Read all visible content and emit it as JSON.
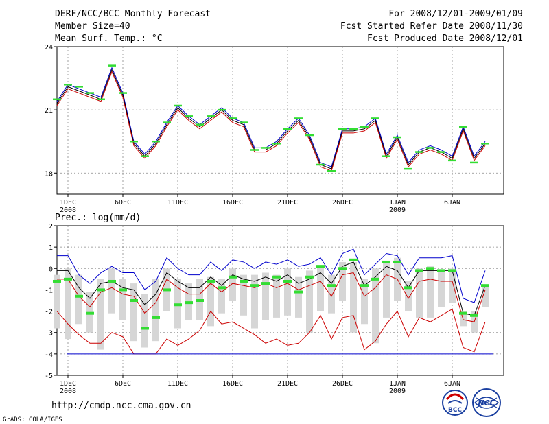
{
  "header": {
    "title": "DERF/NCC/BCC Monthly Forecast",
    "member_size": "Member Size=40",
    "variable": "Mean Surf. Temp.: °C",
    "forecast_period": "For 2008/12/01-2009/01/09",
    "fcst_started": "Fcst Started Refer Date 2008/11/30",
    "fcst_produced": "Fcst Produced Date 2008/12/01"
  },
  "footer": {
    "url": "http://cmdp.ncc.cma.gov.cn",
    "grads": "GrADS: COLA/IGES",
    "logo_bcc": "BCC",
    "logo_ncc": "NCC"
  },
  "colors": {
    "ensemble_mean": "#000000",
    "upper": "#0000cc",
    "lower": "#cc0000",
    "marker": "#33dd33",
    "box": "#d6d6d6",
    "grid": "#888888"
  },
  "chart_data": [
    {
      "type": "line",
      "title": "Mean Surf. Temp.: °C",
      "x_tick_labels": [
        "1DEC",
        "6DEC",
        "11DEC",
        "16DEC",
        "21DEC",
        "26DEC",
        "1JAN",
        "6JAN"
      ],
      "x_year_labels": [
        {
          "at": "1DEC",
          "label": "2008"
        },
        {
          "at": "1JAN",
          "label": "2009"
        }
      ],
      "ylim": [
        17,
        24
      ],
      "yticks": [
        18,
        21,
        24
      ],
      "grid": true,
      "days": 40,
      "series": [
        {
          "name": "upper",
          "values": [
            21.4,
            22.2,
            22.0,
            21.8,
            21.6,
            23.0,
            21.8,
            19.5,
            18.9,
            19.5,
            20.4,
            21.2,
            20.7,
            20.3,
            20.7,
            21.1,
            20.6,
            20.4,
            19.2,
            19.2,
            19.5,
            20.1,
            20.6,
            19.8,
            18.5,
            18.3,
            20.1,
            20.1,
            20.2,
            20.6,
            18.9,
            19.8,
            18.5,
            19.1,
            19.3,
            19.1,
            18.8,
            20.2,
            18.8,
            19.5
          ]
        },
        {
          "name": "ensemble_mean",
          "values": [
            21.3,
            22.1,
            21.9,
            21.7,
            21.5,
            22.9,
            21.7,
            19.4,
            18.8,
            19.4,
            20.3,
            21.1,
            20.6,
            20.2,
            20.6,
            21.0,
            20.5,
            20.3,
            19.1,
            19.1,
            19.4,
            20.0,
            20.5,
            19.7,
            18.4,
            18.2,
            20.0,
            20.0,
            20.1,
            20.5,
            18.8,
            19.7,
            18.4,
            19.0,
            19.2,
            19.0,
            18.7,
            20.1,
            18.7,
            19.4
          ]
        },
        {
          "name": "lower",
          "values": [
            21.2,
            22.0,
            21.8,
            21.6,
            21.4,
            22.8,
            21.6,
            19.3,
            18.7,
            19.3,
            20.2,
            21.0,
            20.5,
            20.1,
            20.5,
            20.9,
            20.4,
            20.2,
            19.0,
            19.0,
            19.3,
            19.9,
            20.4,
            19.6,
            18.3,
            18.1,
            19.9,
            19.9,
            20.0,
            20.4,
            18.7,
            19.6,
            18.3,
            18.9,
            19.1,
            18.9,
            18.6,
            20.0,
            18.6,
            19.3
          ]
        },
        {
          "name": "observed_marker",
          "values": [
            21.5,
            22.2,
            22.1,
            21.8,
            21.5,
            23.1,
            21.8,
            19.5,
            18.8,
            19.5,
            20.4,
            21.2,
            20.7,
            20.3,
            20.7,
            21.0,
            20.6,
            20.4,
            19.1,
            19.2,
            19.4,
            20.1,
            20.6,
            19.8,
            18.4,
            18.1,
            20.1,
            20.1,
            20.2,
            20.6,
            18.8,
            19.7,
            18.2,
            19.0,
            19.2,
            19.0,
            18.6,
            20.2,
            18.5,
            19.4
          ]
        }
      ]
    },
    {
      "type": "line",
      "title": "Prec.: log(mm/d)",
      "x_tick_labels": [
        "1DEC",
        "6DEC",
        "11DEC",
        "16DEC",
        "21DEC",
        "26DEC",
        "1JAN",
        "6JAN"
      ],
      "x_year_labels": [
        {
          "at": "1DEC",
          "label": "2008"
        },
        {
          "at": "1JAN",
          "label": "2009"
        }
      ],
      "ylim": [
        -5,
        2
      ],
      "yticks": [
        -5,
        -4,
        -3,
        -2,
        -1,
        0,
        1,
        2
      ],
      "grid": true,
      "days": 40,
      "series": [
        {
          "name": "upper",
          "values": [
            0.6,
            0.6,
            -0.3,
            -0.7,
            -0.2,
            0.1,
            -0.2,
            -0.2,
            -1.0,
            -0.6,
            0.5,
            0.0,
            -0.3,
            -0.3,
            0.3,
            -0.1,
            0.4,
            0.3,
            0.0,
            0.3,
            0.2,
            0.4,
            0.1,
            0.2,
            0.5,
            -0.3,
            0.7,
            0.9,
            -0.3,
            0.2,
            0.7,
            0.6,
            -0.3,
            0.5,
            0.5,
            0.5,
            0.6,
            -1.4,
            -1.6,
            -0.1
          ]
        },
        {
          "name": "ensemble_mean",
          "values": [
            -0.1,
            -0.1,
            -0.9,
            -1.4,
            -0.7,
            -0.6,
            -0.9,
            -1.0,
            -1.7,
            -1.2,
            -0.2,
            -0.6,
            -0.9,
            -0.9,
            -0.4,
            -0.8,
            -0.3,
            -0.5,
            -0.6,
            -0.4,
            -0.6,
            -0.3,
            -0.7,
            -0.5,
            -0.2,
            -0.7,
            0.1,
            0.3,
            -0.8,
            -0.4,
            0.1,
            -0.1,
            -0.9,
            -0.1,
            -0.1,
            -0.1,
            -0.1,
            -2.1,
            -2.2,
            -0.8
          ]
        },
        {
          "name": "lower_mean",
          "values": [
            -0.5,
            -0.5,
            -1.3,
            -1.8,
            -1.1,
            -0.9,
            -1.2,
            -1.3,
            -2.1,
            -1.6,
            -0.5,
            -0.9,
            -1.2,
            -1.2,
            -0.7,
            -1.1,
            -0.7,
            -0.8,
            -0.9,
            -0.7,
            -0.9,
            -0.7,
            -1.0,
            -0.8,
            -0.6,
            -1.3,
            -0.3,
            -0.2,
            -1.3,
            -0.9,
            -0.3,
            -0.5,
            -1.4,
            -0.6,
            -0.5,
            -0.6,
            -0.6,
            -2.4,
            -2.5,
            -1.0
          ]
        },
        {
          "name": "lower",
          "values": [
            -2.0,
            -2.6,
            -3.1,
            -3.5,
            -3.5,
            -3.0,
            -3.2,
            -4.0,
            -4.0,
            -4.0,
            -3.3,
            -3.6,
            -3.3,
            -2.9,
            -2.0,
            -2.6,
            -2.5,
            -2.8,
            -3.1,
            -3.5,
            -3.3,
            -3.6,
            -3.5,
            -3.0,
            -2.2,
            -3.3,
            -2.3,
            -2.2,
            -3.8,
            -3.4,
            -2.6,
            -2.0,
            -3.2,
            -2.3,
            -2.5,
            -2.2,
            -1.9,
            -3.7,
            -3.9,
            -2.5
          ]
        },
        {
          "name": "floor",
          "values": [
            -4,
            -4,
            -4,
            -4,
            -4,
            -4,
            -4,
            -4,
            -4,
            -4,
            -4,
            -4,
            -4,
            -4,
            -4,
            -4,
            -4,
            -4,
            -4,
            -4,
            -4,
            -4,
            -4,
            -4,
            -4,
            -4,
            -4,
            -4,
            -4,
            -4,
            -4,
            -4,
            -4,
            -4,
            -4,
            -4,
            -4,
            -4,
            -4,
            -4
          ]
        },
        {
          "name": "observed_marker",
          "values": [
            -0.6,
            -0.5,
            -1.3,
            -2.1,
            -1.0,
            -0.6,
            -1.0,
            -1.5,
            -2.8,
            -2.3,
            -1.0,
            -1.7,
            -1.6,
            -1.5,
            -0.6,
            -0.9,
            -0.4,
            -0.6,
            -0.8,
            -0.7,
            -0.4,
            -0.6,
            -1.1,
            -0.4,
            0.1,
            -0.8,
            0.0,
            0.4,
            -0.8,
            -0.5,
            0.3,
            0.3,
            -0.9,
            -0.1,
            0.0,
            -0.1,
            -0.1,
            -2.1,
            -2.2,
            -0.8
          ]
        },
        {
          "name": "box_top",
          "values": [
            -0.3,
            0.0,
            -0.3,
            -1.1,
            -0.5,
            0.0,
            -0.5,
            -0.7,
            -1.2,
            -0.5,
            0.0,
            -0.5,
            -0.7,
            -0.5,
            -0.4,
            -0.5,
            0.0,
            -0.3,
            -0.3,
            -0.2,
            -0.3,
            0.0,
            -0.4,
            -0.1,
            0.1,
            -0.3,
            0.3,
            0.3,
            -0.5,
            0.0,
            0.3,
            0.5,
            -0.6,
            0.0,
            0.1,
            -0.1,
            0.0,
            -2.0,
            -2.0,
            -0.8
          ]
        },
        {
          "name": "box_bottom",
          "values": [
            -2.8,
            -3.3,
            -2.6,
            -3.0,
            -3.8,
            -2.1,
            -2.4,
            -3.4,
            -3.7,
            -3.4,
            -2.0,
            -2.8,
            -2.4,
            -2.4,
            -2.7,
            -2.1,
            -1.5,
            -2.2,
            -2.8,
            -2.4,
            -2.3,
            -2.2,
            -2.3,
            -3.0,
            -2.0,
            -2.1,
            -1.5,
            -3.0,
            -2.6,
            -3.5,
            -2.3,
            -1.5,
            -2.0,
            -2.3,
            -2.3,
            -1.8,
            -1.6,
            -2.7,
            -3.0,
            -1.8
          ]
        }
      ]
    }
  ]
}
